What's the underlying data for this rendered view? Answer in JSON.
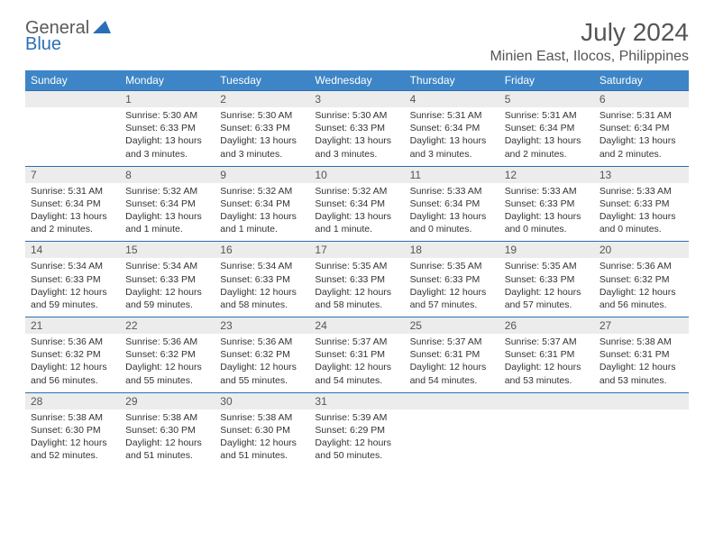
{
  "logo": {
    "part1": "General",
    "part2": "Blue"
  },
  "title": "July 2024",
  "location": "Minien East, Ilocos, Philippines",
  "weekdays": [
    "Sunday",
    "Monday",
    "Tuesday",
    "Wednesday",
    "Thursday",
    "Friday",
    "Saturday"
  ],
  "colors": {
    "header_bg": "#3d85c6",
    "border": "#2a6fb5",
    "daynum_bg": "#ececec",
    "text": "#333333"
  },
  "first_weekday_index": 1,
  "days": [
    {
      "n": 1,
      "sunrise": "5:30 AM",
      "sunset": "6:33 PM",
      "daylight": "13 hours and 3 minutes."
    },
    {
      "n": 2,
      "sunrise": "5:30 AM",
      "sunset": "6:33 PM",
      "daylight": "13 hours and 3 minutes."
    },
    {
      "n": 3,
      "sunrise": "5:30 AM",
      "sunset": "6:33 PM",
      "daylight": "13 hours and 3 minutes."
    },
    {
      "n": 4,
      "sunrise": "5:31 AM",
      "sunset": "6:34 PM",
      "daylight": "13 hours and 3 minutes."
    },
    {
      "n": 5,
      "sunrise": "5:31 AM",
      "sunset": "6:34 PM",
      "daylight": "13 hours and 2 minutes."
    },
    {
      "n": 6,
      "sunrise": "5:31 AM",
      "sunset": "6:34 PM",
      "daylight": "13 hours and 2 minutes."
    },
    {
      "n": 7,
      "sunrise": "5:31 AM",
      "sunset": "6:34 PM",
      "daylight": "13 hours and 2 minutes."
    },
    {
      "n": 8,
      "sunrise": "5:32 AM",
      "sunset": "6:34 PM",
      "daylight": "13 hours and 1 minute."
    },
    {
      "n": 9,
      "sunrise": "5:32 AM",
      "sunset": "6:34 PM",
      "daylight": "13 hours and 1 minute."
    },
    {
      "n": 10,
      "sunrise": "5:32 AM",
      "sunset": "6:34 PM",
      "daylight": "13 hours and 1 minute."
    },
    {
      "n": 11,
      "sunrise": "5:33 AM",
      "sunset": "6:34 PM",
      "daylight": "13 hours and 0 minutes."
    },
    {
      "n": 12,
      "sunrise": "5:33 AM",
      "sunset": "6:33 PM",
      "daylight": "13 hours and 0 minutes."
    },
    {
      "n": 13,
      "sunrise": "5:33 AM",
      "sunset": "6:33 PM",
      "daylight": "13 hours and 0 minutes."
    },
    {
      "n": 14,
      "sunrise": "5:34 AM",
      "sunset": "6:33 PM",
      "daylight": "12 hours and 59 minutes."
    },
    {
      "n": 15,
      "sunrise": "5:34 AM",
      "sunset": "6:33 PM",
      "daylight": "12 hours and 59 minutes."
    },
    {
      "n": 16,
      "sunrise": "5:34 AM",
      "sunset": "6:33 PM",
      "daylight": "12 hours and 58 minutes."
    },
    {
      "n": 17,
      "sunrise": "5:35 AM",
      "sunset": "6:33 PM",
      "daylight": "12 hours and 58 minutes."
    },
    {
      "n": 18,
      "sunrise": "5:35 AM",
      "sunset": "6:33 PM",
      "daylight": "12 hours and 57 minutes."
    },
    {
      "n": 19,
      "sunrise": "5:35 AM",
      "sunset": "6:33 PM",
      "daylight": "12 hours and 57 minutes."
    },
    {
      "n": 20,
      "sunrise": "5:36 AM",
      "sunset": "6:32 PM",
      "daylight": "12 hours and 56 minutes."
    },
    {
      "n": 21,
      "sunrise": "5:36 AM",
      "sunset": "6:32 PM",
      "daylight": "12 hours and 56 minutes."
    },
    {
      "n": 22,
      "sunrise": "5:36 AM",
      "sunset": "6:32 PM",
      "daylight": "12 hours and 55 minutes."
    },
    {
      "n": 23,
      "sunrise": "5:36 AM",
      "sunset": "6:32 PM",
      "daylight": "12 hours and 55 minutes."
    },
    {
      "n": 24,
      "sunrise": "5:37 AM",
      "sunset": "6:31 PM",
      "daylight": "12 hours and 54 minutes."
    },
    {
      "n": 25,
      "sunrise": "5:37 AM",
      "sunset": "6:31 PM",
      "daylight": "12 hours and 54 minutes."
    },
    {
      "n": 26,
      "sunrise": "5:37 AM",
      "sunset": "6:31 PM",
      "daylight": "12 hours and 53 minutes."
    },
    {
      "n": 27,
      "sunrise": "5:38 AM",
      "sunset": "6:31 PM",
      "daylight": "12 hours and 53 minutes."
    },
    {
      "n": 28,
      "sunrise": "5:38 AM",
      "sunset": "6:30 PM",
      "daylight": "12 hours and 52 minutes."
    },
    {
      "n": 29,
      "sunrise": "5:38 AM",
      "sunset": "6:30 PM",
      "daylight": "12 hours and 51 minutes."
    },
    {
      "n": 30,
      "sunrise": "5:38 AM",
      "sunset": "6:30 PM",
      "daylight": "12 hours and 51 minutes."
    },
    {
      "n": 31,
      "sunrise": "5:39 AM",
      "sunset": "6:29 PM",
      "daylight": "12 hours and 50 minutes."
    }
  ]
}
